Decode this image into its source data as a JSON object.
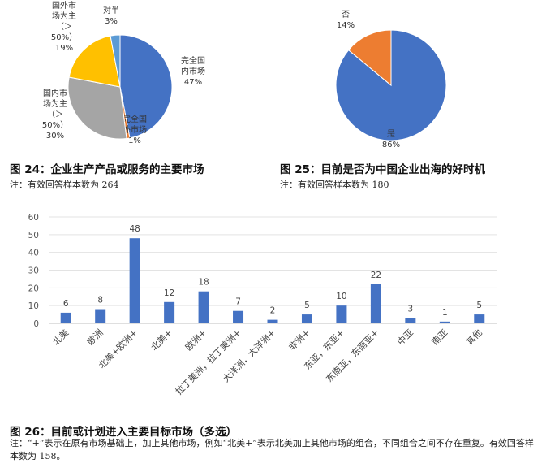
{
  "figures": {
    "fig24": {
      "caption": "图 24：企业生产产品或服务的主要市场",
      "note": "注：有效回答样本数为 264"
    },
    "fig25": {
      "caption": "图 25：目前是否为中国企业出海的好时机",
      "note": "注：有效回答样本数为 180"
    },
    "fig26": {
      "caption": "图 26：目前或计划进入主要目标市场（多选）",
      "note": "注：“+”表示在原有市场基础上，加上其他市场，例如“北美+”表示北美加上其他市场的组合，不同组合之间不存在重复。有效回答样本数为 158。"
    }
  },
  "chart_data": [
    {
      "type": "pie",
      "title": "",
      "slices": [
        {
          "label_lines": [
            "完全国",
            "内市场",
            "47%"
          ],
          "value": 47,
          "color": "#4472C4"
        },
        {
          "label_lines": [
            "完全国",
            "外市场",
            "1%"
          ],
          "value": 1,
          "color": "#ED7D31"
        },
        {
          "label_lines": [
            "国内市",
            "场为主",
            "（＞",
            "50%）",
            "30%"
          ],
          "value": 30,
          "color": "#A5A5A5"
        },
        {
          "label_lines": [
            "国外市",
            "场为主",
            "（＞",
            "50%）",
            "19%"
          ],
          "value": 19,
          "color": "#FFC000"
        },
        {
          "label_lines": [
            "对半",
            "3%"
          ],
          "value": 3,
          "color": "#5B9BD5"
        }
      ]
    },
    {
      "type": "pie",
      "title": "",
      "slices": [
        {
          "label_lines": [
            "是",
            "86%"
          ],
          "value": 86,
          "color": "#4472C4"
        },
        {
          "label_lines": [
            "否",
            "14%"
          ],
          "value": 14,
          "color": "#ED7D31"
        }
      ]
    },
    {
      "type": "bar",
      "title": "",
      "categories": [
        "北美",
        "欧洲",
        "北美+欧洲+",
        "北美+",
        "欧洲+",
        "拉丁美洲，拉丁美洲+",
        "大洋洲，大洋洲+",
        "非洲+",
        "东亚，东亚+",
        "东南亚，东南亚+",
        "中亚",
        "南亚",
        "其他"
      ],
      "values": [
        6,
        8,
        48,
        12,
        18,
        7,
        2,
        5,
        10,
        22,
        3,
        1,
        5
      ],
      "ylim": [
        0,
        60
      ],
      "yticks": [
        0,
        10,
        20,
        30,
        40,
        50,
        60
      ],
      "grid": true,
      "color": "#4472C4"
    }
  ]
}
